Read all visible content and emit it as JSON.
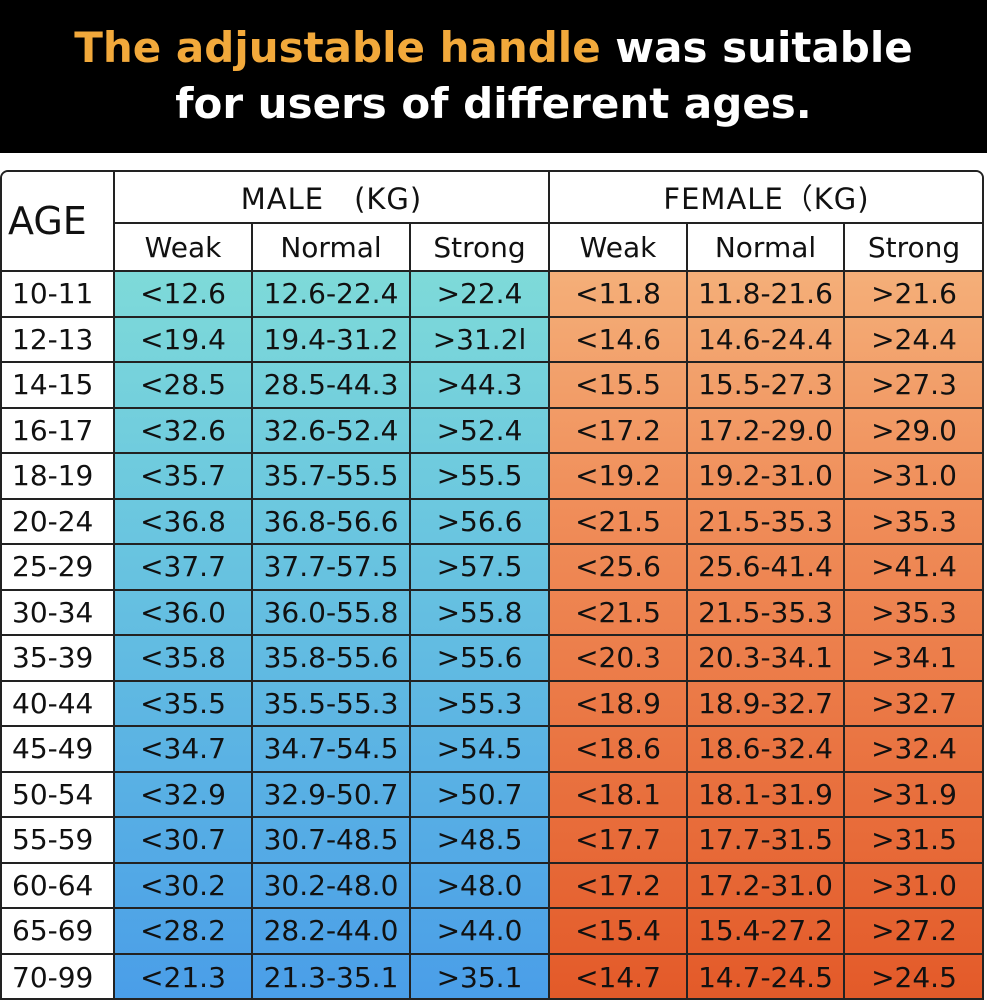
{
  "title": {
    "highlight": "The adjustable handle",
    "rest": " was suitable",
    "line2": "for users of different ages."
  },
  "table": {
    "age_header": "AGE",
    "male_header": "MALE　(KG)",
    "female_header": "FEMALE（KG)",
    "male_sub": [
      "Weak",
      "Normal",
      "Strong"
    ],
    "female_sub": [
      "Weak",
      "Normal",
      "Strong"
    ],
    "colors": {
      "male_top": "#86e2d6",
      "male_bottom": "#4a9ee8",
      "female_top": "#f6bd86",
      "female_bottom": "#e35a29",
      "title_highlight": "#f2a93b"
    },
    "rows": [
      {
        "age": "10-11",
        "m_weak": "<12.6",
        "m_normal": "12.6-22.4",
        "m_strong": ">22.4",
        "f_weak": "<11.8",
        "f_normal": "11.8-21.6",
        "f_strong": ">21.6"
      },
      {
        "age": "12-13",
        "m_weak": "<19.4",
        "m_normal": "19.4-31.2",
        "m_strong": ">31.2l",
        "f_weak": "<14.6",
        "f_normal": "14.6-24.4",
        "f_strong": ">24.4"
      },
      {
        "age": "14-15",
        "m_weak": "<28.5",
        "m_normal": "28.5-44.3",
        "m_strong": ">44.3",
        "f_weak": "<15.5",
        "f_normal": "15.5-27.3",
        "f_strong": ">27.3"
      },
      {
        "age": "16-17",
        "m_weak": "<32.6",
        "m_normal": "32.6-52.4",
        "m_strong": ">52.4",
        "f_weak": "<17.2",
        "f_normal": "17.2-29.0",
        "f_strong": ">29.0"
      },
      {
        "age": "18-19",
        "m_weak": "<35.7",
        "m_normal": "35.7-55.5",
        "m_strong": ">55.5",
        "f_weak": "<19.2",
        "f_normal": "19.2-31.0",
        "f_strong": ">31.0"
      },
      {
        "age": "20-24",
        "m_weak": "<36.8",
        "m_normal": "36.8-56.6",
        "m_strong": ">56.6",
        "f_weak": "<21.5",
        "f_normal": "21.5-35.3",
        "f_strong": ">35.3"
      },
      {
        "age": "25-29",
        "m_weak": "<37.7",
        "m_normal": "37.7-57.5",
        "m_strong": ">57.5",
        "f_weak": "<25.6",
        "f_normal": "25.6-41.4",
        "f_strong": ">41.4"
      },
      {
        "age": "30-34",
        "m_weak": "<36.0",
        "m_normal": "36.0-55.8",
        "m_strong": ">55.8",
        "f_weak": "<21.5",
        "f_normal": "21.5-35.3",
        "f_strong": ">35.3"
      },
      {
        "age": "35-39",
        "m_weak": "<35.8",
        "m_normal": "35.8-55.6",
        "m_strong": ">55.6",
        "f_weak": "<20.3",
        "f_normal": "20.3-34.1",
        "f_strong": ">34.1"
      },
      {
        "age": "40-44",
        "m_weak": "<35.5",
        "m_normal": "35.5-55.3",
        "m_strong": ">55.3",
        "f_weak": "<18.9",
        "f_normal": "18.9-32.7",
        "f_strong": ">32.7"
      },
      {
        "age": "45-49",
        "m_weak": "<34.7",
        "m_normal": "34.7-54.5",
        "m_strong": ">54.5",
        "f_weak": "<18.6",
        "f_normal": "18.6-32.4",
        "f_strong": ">32.4"
      },
      {
        "age": "50-54",
        "m_weak": "<32.9",
        "m_normal": "32.9-50.7",
        "m_strong": ">50.7",
        "f_weak": "<18.1",
        "f_normal": "18.1-31.9",
        "f_strong": ">31.9"
      },
      {
        "age": "55-59",
        "m_weak": "<30.7",
        "m_normal": "30.7-48.5",
        "m_strong": ">48.5",
        "f_weak": "<17.7",
        "f_normal": "17.7-31.5",
        "f_strong": ">31.5"
      },
      {
        "age": "60-64",
        "m_weak": "<30.2",
        "m_normal": "30.2-48.0",
        "m_strong": ">48.0",
        "f_weak": "<17.2",
        "f_normal": "17.2-31.0",
        "f_strong": ">31.0"
      },
      {
        "age": "65-69",
        "m_weak": "<28.2",
        "m_normal": "28.2-44.0",
        "m_strong": ">44.0",
        "f_weak": "<15.4",
        "f_normal": "15.4-27.2",
        "f_strong": ">27.2"
      },
      {
        "age": "70-99",
        "m_weak": "<21.3",
        "m_normal": "21.3-35.1",
        "m_strong": ">35.1",
        "f_weak": "<14.7",
        "f_normal": "14.7-24.5",
        "f_strong": ">24.5"
      }
    ]
  }
}
